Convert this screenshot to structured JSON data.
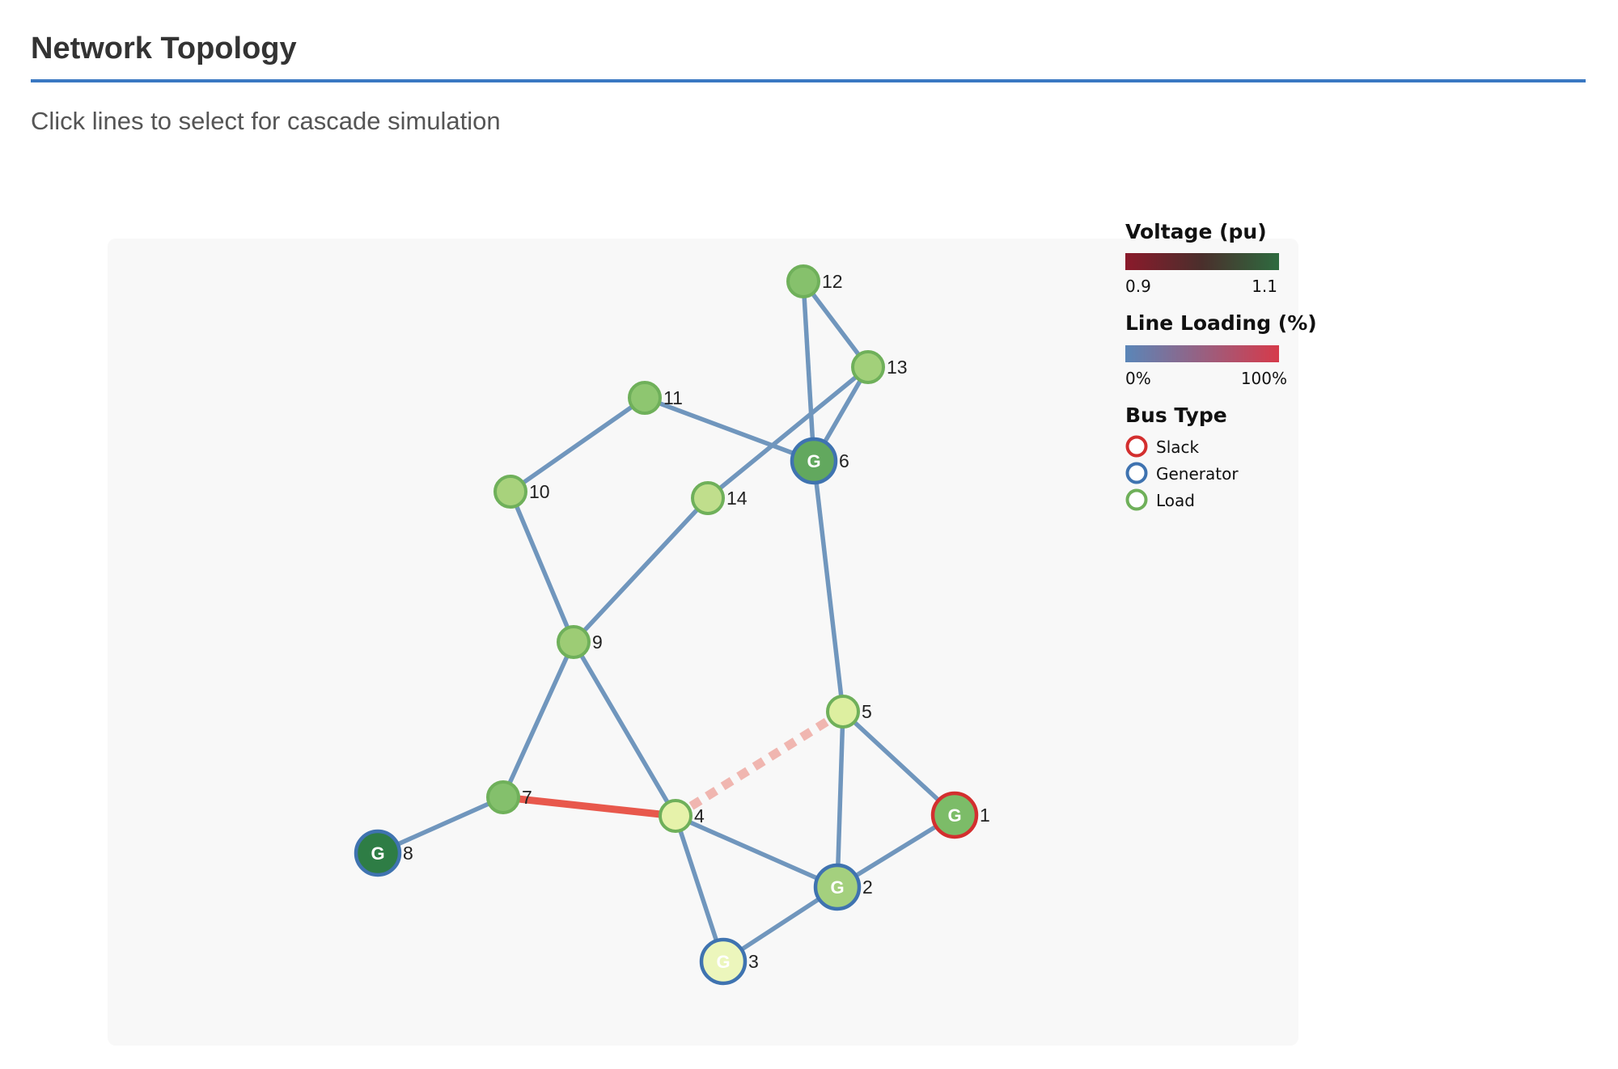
{
  "header": {
    "title": "Network Topology",
    "subtitle": "Click lines to select for cascade simulation"
  },
  "legend": {
    "voltage_title": "Voltage (pu)",
    "voltage_min": "0.9",
    "voltage_max": "1.1",
    "voltage_colors": [
      "#8b1a2b",
      "#2e6b3f"
    ],
    "loading_title": "Line Loading (%)",
    "loading_min": "0%",
    "loading_max": "100%",
    "loading_colors": [
      "#5a86b8",
      "#d63a4a"
    ],
    "bus_type_title": "Bus Type",
    "bus_types": [
      {
        "label": "Slack",
        "color": "#d32f2f"
      },
      {
        "label": "Generator",
        "color": "#3f73b0"
      },
      {
        "label": "Load",
        "color": "#6fb05a"
      }
    ]
  },
  "colors": {
    "panel_bg": "#f8f8f8",
    "line_normal": "#7096bd",
    "line_overloaded": "#e8584c",
    "line_tripped": "#f0b6b0"
  },
  "network": {
    "buses": [
      {
        "id": "1",
        "type": "slack",
        "generator": true,
        "fill": "#7cbc68"
      },
      {
        "id": "2",
        "type": "generator",
        "generator": true,
        "fill": "#a4d07e"
      },
      {
        "id": "3",
        "type": "generator",
        "generator": true,
        "fill": "#ecf6bc"
      },
      {
        "id": "4",
        "type": "load",
        "generator": false,
        "fill": "#e6f2aa"
      },
      {
        "id": "5",
        "type": "load",
        "generator": false,
        "fill": "#ddefa0"
      },
      {
        "id": "6",
        "type": "generator",
        "generator": true,
        "fill": "#62a85e"
      },
      {
        "id": "7",
        "type": "load",
        "generator": false,
        "fill": "#84c06c"
      },
      {
        "id": "8",
        "type": "generator",
        "generator": true,
        "fill": "#2e7d45"
      },
      {
        "id": "9",
        "type": "load",
        "generator": false,
        "fill": "#9dcc75"
      },
      {
        "id": "10",
        "type": "load",
        "generator": false,
        "fill": "#a8d27c"
      },
      {
        "id": "11",
        "type": "load",
        "generator": false,
        "fill": "#8ec670"
      },
      {
        "id": "12",
        "type": "load",
        "generator": false,
        "fill": "#86c16c"
      },
      {
        "id": "13",
        "type": "load",
        "generator": false,
        "fill": "#a2d07a"
      },
      {
        "id": "14",
        "type": "load",
        "generator": false,
        "fill": "#c0de8c"
      }
    ],
    "lines": [
      {
        "from": "1",
        "to": "2",
        "status": "normal"
      },
      {
        "from": "1",
        "to": "5",
        "status": "normal"
      },
      {
        "from": "2",
        "to": "3",
        "status": "normal"
      },
      {
        "from": "2",
        "to": "4",
        "status": "normal"
      },
      {
        "from": "2",
        "to": "5",
        "status": "normal"
      },
      {
        "from": "3",
        "to": "4",
        "status": "normal"
      },
      {
        "from": "4",
        "to": "5",
        "status": "tripped"
      },
      {
        "from": "4",
        "to": "7",
        "status": "overloaded"
      },
      {
        "from": "4",
        "to": "9",
        "status": "normal"
      },
      {
        "from": "5",
        "to": "6",
        "status": "normal"
      },
      {
        "from": "6",
        "to": "11",
        "status": "normal"
      },
      {
        "from": "6",
        "to": "12",
        "status": "normal"
      },
      {
        "from": "6",
        "to": "13",
        "status": "normal"
      },
      {
        "from": "7",
        "to": "8",
        "status": "normal"
      },
      {
        "from": "7",
        "to": "9",
        "status": "normal"
      },
      {
        "from": "9",
        "to": "10",
        "status": "normal"
      },
      {
        "from": "9",
        "to": "14",
        "status": "normal"
      },
      {
        "from": "10",
        "to": "11",
        "status": "normal"
      },
      {
        "from": "12",
        "to": "13",
        "status": "normal"
      },
      {
        "from": "13",
        "to": "14",
        "status": "normal"
      }
    ]
  }
}
